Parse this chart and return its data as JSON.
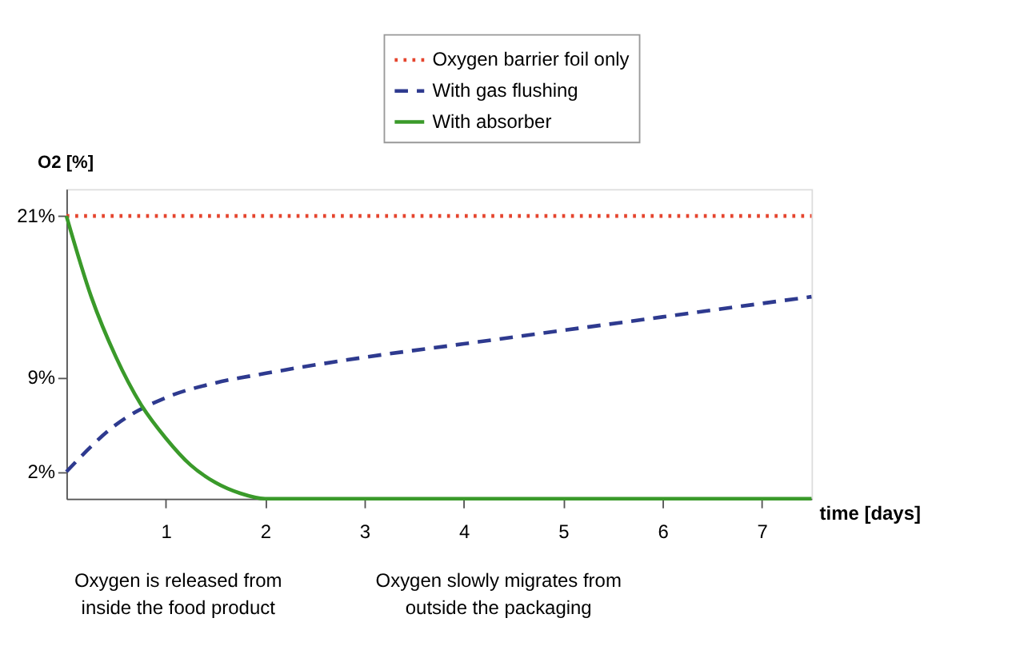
{
  "chart_data": {
    "type": "line",
    "ylabel": "O2 [%]",
    "xlabel": "time [days]",
    "xlim": [
      0,
      7.5
    ],
    "ylim": [
      0,
      23
    ],
    "xticks": [
      1,
      2,
      3,
      4,
      5,
      6,
      7
    ],
    "yticks": [
      {
        "value": 2,
        "label": "2%"
      },
      {
        "value": 9,
        "label": "9%"
      },
      {
        "value": 21,
        "label": "21%"
      }
    ],
    "grid": false,
    "legend": "top right",
    "marker": "none",
    "series": [
      {
        "name": "Oxygen barrier foil only",
        "color": "#e5452e",
        "line_style": "dotted",
        "x": [
          0,
          7.5
        ],
        "values": [
          21,
          21
        ]
      },
      {
        "name": "With gas flushing",
        "color": "#2e3a8f",
        "line_style": "dashed",
        "x": [
          0,
          0.5,
          1,
          1.5,
          2,
          3,
          4,
          5,
          6,
          7,
          7.5
        ],
        "values": [
          2,
          5.5,
          7.5,
          8.6,
          9.3,
          10.5,
          11.5,
          12.5,
          13.5,
          14.5,
          15
        ]
      },
      {
        "name": "With absorber",
        "color": "#3a9a2a",
        "line_style": "solid",
        "x": [
          0,
          0.25,
          0.5,
          0.75,
          1,
          1.25,
          1.5,
          1.75,
          2,
          7.5
        ],
        "values": [
          21,
          15,
          10.5,
          7,
          4.5,
          2.5,
          1.2,
          0.4,
          0,
          0
        ]
      }
    ],
    "annotations": [
      "Oxygen is released from\ninside the food product",
      "Oxygen slowly migrates from\noutside the packaging"
    ]
  }
}
